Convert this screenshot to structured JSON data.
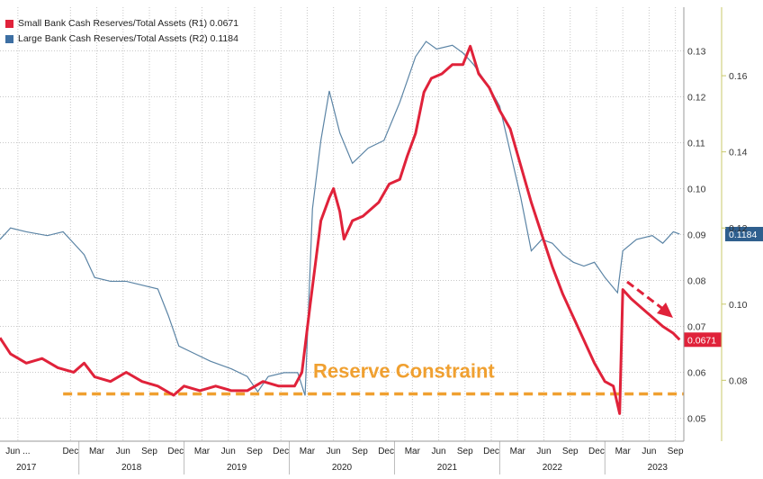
{
  "colors": {
    "small": "#e0223a",
    "large": "#5b84a5",
    "constraint": "#f0a030",
    "grid": "#c8c8c8",
    "right_axis": "#c8c86a"
  },
  "legend": {
    "small": "Small Bank Cash Reserves/Total Assets (R1) 0.0671",
    "large": "Large Bank Cash Reserves/Total Assets (R2) 0.1184"
  },
  "annotation": "Reserve Constraint",
  "chart_data": {
    "type": "line",
    "x_unit": "year (decimal)",
    "x_range": [
      2017.25,
      2023.75
    ],
    "x_month_labels": [
      {
        "t": 2017.42,
        "label": "Jun ..."
      },
      {
        "t": 2017.92,
        "label": "Dec"
      },
      {
        "t": 2018.17,
        "label": "Mar"
      },
      {
        "t": 2018.42,
        "label": "Jun"
      },
      {
        "t": 2018.67,
        "label": "Sep"
      },
      {
        "t": 2018.92,
        "label": "Dec"
      },
      {
        "t": 2019.17,
        "label": "Mar"
      },
      {
        "t": 2019.42,
        "label": "Jun"
      },
      {
        "t": 2019.67,
        "label": "Sep"
      },
      {
        "t": 2019.92,
        "label": "Dec"
      },
      {
        "t": 2020.17,
        "label": "Mar"
      },
      {
        "t": 2020.42,
        "label": "Jun"
      },
      {
        "t": 2020.67,
        "label": "Sep"
      },
      {
        "t": 2020.92,
        "label": "Dec"
      },
      {
        "t": 2021.17,
        "label": "Mar"
      },
      {
        "t": 2021.42,
        "label": "Jun"
      },
      {
        "t": 2021.67,
        "label": "Sep"
      },
      {
        "t": 2021.92,
        "label": "Dec"
      },
      {
        "t": 2022.17,
        "label": "Mar"
      },
      {
        "t": 2022.42,
        "label": "Jun"
      },
      {
        "t": 2022.67,
        "label": "Sep"
      },
      {
        "t": 2022.92,
        "label": "Dec"
      },
      {
        "t": 2023.17,
        "label": "Mar"
      },
      {
        "t": 2023.42,
        "label": "Jun"
      },
      {
        "t": 2023.67,
        "label": "Sep"
      }
    ],
    "x_year_labels": [
      {
        "t": 2017.5,
        "label": "2017"
      },
      {
        "t": 2018.5,
        "label": "2018"
      },
      {
        "t": 2019.5,
        "label": "2019"
      },
      {
        "t": 2020.5,
        "label": "2020"
      },
      {
        "t": 2021.5,
        "label": "2021"
      },
      {
        "t": 2022.5,
        "label": "2022"
      },
      {
        "t": 2023.5,
        "label": "2023"
      }
    ],
    "r1_axis": {
      "ticks": [
        "0.05",
        "0.06",
        "0.07",
        "0.08",
        "0.09",
        "0.10",
        "0.11",
        "0.12",
        "0.13"
      ],
      "range": [
        0.045,
        0.1395
      ]
    },
    "r2_axis": {
      "ticks": [
        "0.08",
        "0.10",
        "0.12",
        "0.14",
        "0.16"
      ],
      "range": [
        0.064,
        0.178
      ]
    },
    "series": [
      {
        "name": "Small Bank Cash Reserves/Total Assets (R1)",
        "axis": "R1",
        "last_label": "0.0671",
        "points": [
          [
            2017.25,
            0.0675
          ],
          [
            2017.35,
            0.064
          ],
          [
            2017.5,
            0.062
          ],
          [
            2017.65,
            0.063
          ],
          [
            2017.8,
            0.061
          ],
          [
            2017.95,
            0.06
          ],
          [
            2018.05,
            0.062
          ],
          [
            2018.15,
            0.059
          ],
          [
            2018.3,
            0.058
          ],
          [
            2018.45,
            0.06
          ],
          [
            2018.6,
            0.058
          ],
          [
            2018.75,
            0.057
          ],
          [
            2018.9,
            0.055
          ],
          [
            2019.0,
            0.057
          ],
          [
            2019.15,
            0.056
          ],
          [
            2019.3,
            0.057
          ],
          [
            2019.45,
            0.056
          ],
          [
            2019.6,
            0.056
          ],
          [
            2019.75,
            0.058
          ],
          [
            2019.9,
            0.057
          ],
          [
            2020.05,
            0.057
          ],
          [
            2020.12,
            0.06
          ],
          [
            2020.2,
            0.075
          ],
          [
            2020.3,
            0.093
          ],
          [
            2020.38,
            0.098
          ],
          [
            2020.42,
            0.1
          ],
          [
            2020.48,
            0.095
          ],
          [
            2020.52,
            0.089
          ],
          [
            2020.6,
            0.093
          ],
          [
            2020.7,
            0.094
          ],
          [
            2020.85,
            0.097
          ],
          [
            2020.95,
            0.101
          ],
          [
            2021.05,
            0.102
          ],
          [
            2021.12,
            0.107
          ],
          [
            2021.2,
            0.112
          ],
          [
            2021.28,
            0.121
          ],
          [
            2021.35,
            0.124
          ],
          [
            2021.45,
            0.125
          ],
          [
            2021.55,
            0.127
          ],
          [
            2021.65,
            0.127
          ],
          [
            2021.72,
            0.131
          ],
          [
            2021.8,
            0.125
          ],
          [
            2021.9,
            0.122
          ],
          [
            2022.0,
            0.117
          ],
          [
            2022.1,
            0.113
          ],
          [
            2022.2,
            0.105
          ],
          [
            2022.3,
            0.097
          ],
          [
            2022.4,
            0.09
          ],
          [
            2022.5,
            0.083
          ],
          [
            2022.6,
            0.077
          ],
          [
            2022.7,
            0.072
          ],
          [
            2022.8,
            0.067
          ],
          [
            2022.9,
            0.062
          ],
          [
            2023.0,
            0.058
          ],
          [
            2023.08,
            0.057
          ],
          [
            2023.14,
            0.051
          ],
          [
            2023.17,
            0.078
          ],
          [
            2023.25,
            0.076
          ],
          [
            2023.35,
            0.074
          ],
          [
            2023.45,
            0.072
          ],
          [
            2023.55,
            0.07
          ],
          [
            2023.65,
            0.0685
          ],
          [
            2023.71,
            0.0671
          ]
        ]
      },
      {
        "name": "Large Bank Cash Reserves/Total Assets (R2)",
        "axis": "R2",
        "last_label": "0.1184",
        "points": [
          [
            2017.25,
            0.117
          ],
          [
            2017.35,
            0.12
          ],
          [
            2017.5,
            0.119
          ],
          [
            2017.7,
            0.118
          ],
          [
            2017.85,
            0.119
          ],
          [
            2017.95,
            0.116
          ],
          [
            2018.05,
            0.113
          ],
          [
            2018.15,
            0.107
          ],
          [
            2018.3,
            0.106
          ],
          [
            2018.45,
            0.106
          ],
          [
            2018.6,
            0.105
          ],
          [
            2018.75,
            0.104
          ],
          [
            2018.85,
            0.097
          ],
          [
            2018.95,
            0.089
          ],
          [
            2019.1,
            0.087
          ],
          [
            2019.25,
            0.085
          ],
          [
            2019.45,
            0.083
          ],
          [
            2019.6,
            0.081
          ],
          [
            2019.7,
            0.077
          ],
          [
            2019.8,
            0.081
          ],
          [
            2019.95,
            0.082
          ],
          [
            2020.08,
            0.082
          ],
          [
            2020.15,
            0.076
          ],
          [
            2020.22,
            0.125
          ],
          [
            2020.3,
            0.143
          ],
          [
            2020.38,
            0.156
          ],
          [
            2020.48,
            0.145
          ],
          [
            2020.6,
            0.137
          ],
          [
            2020.75,
            0.141
          ],
          [
            2020.9,
            0.143
          ],
          [
            2021.05,
            0.153
          ],
          [
            2021.2,
            0.165
          ],
          [
            2021.3,
            0.169
          ],
          [
            2021.4,
            0.167
          ],
          [
            2021.55,
            0.168
          ],
          [
            2021.65,
            0.166
          ],
          [
            2021.75,
            0.163
          ],
          [
            2021.9,
            0.157
          ],
          [
            2022.0,
            0.152
          ],
          [
            2022.1,
            0.14
          ],
          [
            2022.2,
            0.128
          ],
          [
            2022.3,
            0.114
          ],
          [
            2022.4,
            0.117
          ],
          [
            2022.5,
            0.116
          ],
          [
            2022.6,
            0.113
          ],
          [
            2022.7,
            0.111
          ],
          [
            2022.8,
            0.11
          ],
          [
            2022.9,
            0.111
          ],
          [
            2023.0,
            0.107
          ],
          [
            2023.12,
            0.103
          ],
          [
            2023.17,
            0.114
          ],
          [
            2023.3,
            0.117
          ],
          [
            2023.45,
            0.118
          ],
          [
            2023.55,
            0.116
          ],
          [
            2023.65,
            0.119
          ],
          [
            2023.71,
            0.1184
          ]
        ]
      }
    ],
    "reference_line": {
      "axis": "R1",
      "value": 0.0553,
      "x_from": 2017.85,
      "x_to": 2023.75,
      "style": "dashed"
    }
  }
}
